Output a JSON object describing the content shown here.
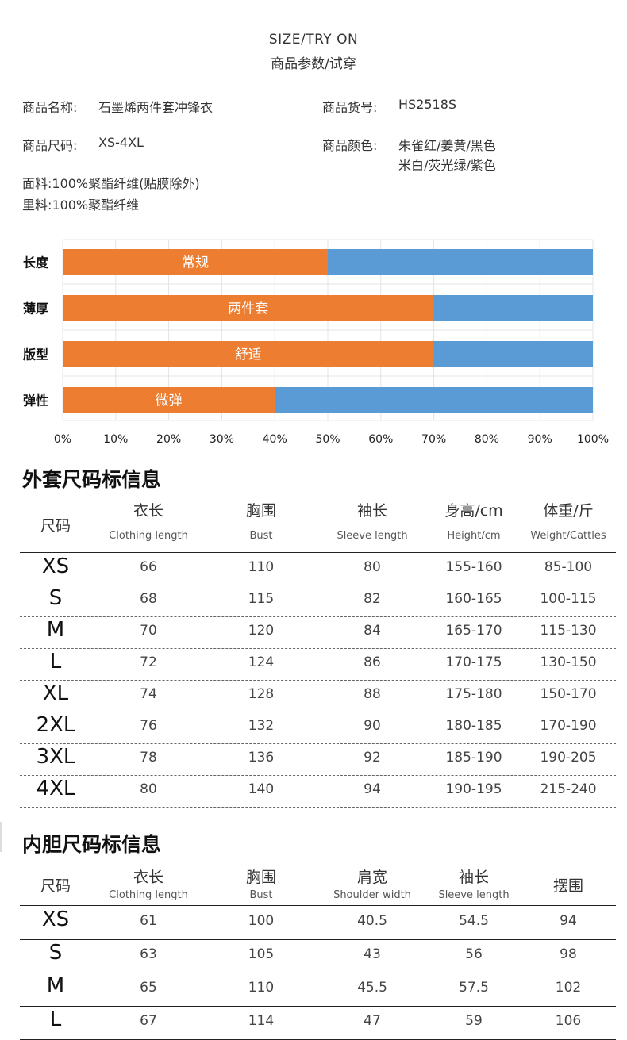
{
  "header": {
    "en": "SIZE/TRY ON",
    "cn": "商品参数/试穿"
  },
  "info": {
    "name_label": "商品名称:",
    "name_value": "石墨烯两件套冲锋衣",
    "code_label": "商品货号:",
    "code_value": "HS2518S",
    "size_label": "商品尺码:",
    "size_value": "XS-4XL",
    "color_label": "商品颜色:",
    "color_line1": "朱雀红/姜黄/黑色",
    "color_line2": "米白/荧光绿/紫色",
    "fabric": "面料:100%聚酯纤维(贴膜除外)",
    "lining": "里料:100%聚酯纤维"
  },
  "chart_data": {
    "type": "bar",
    "orientation": "horizontal",
    "categories": [
      "长度",
      "薄厚",
      "版型",
      "弹性"
    ],
    "labels": [
      "常规",
      "两件套",
      "舒适",
      "微弹"
    ],
    "values": [
      50,
      70,
      70,
      40
    ],
    "xlim": [
      0,
      100
    ],
    "xticks": [
      "0%",
      "10%",
      "20%",
      "30%",
      "40%",
      "50%",
      "60%",
      "70%",
      "80%",
      "90%",
      "100%"
    ],
    "colors": {
      "filled": "#ed7d31",
      "remainder": "#5b9bd5"
    },
    "grid": true
  },
  "outer_table": {
    "title": "外套尺码标信息",
    "size_header": "尺码",
    "columns": [
      {
        "cn": "衣长",
        "en": "Clothing length"
      },
      {
        "cn": "胸围",
        "en": "Bust"
      },
      {
        "cn": "袖长",
        "en": "Sleeve length"
      },
      {
        "cn": "身高/cm",
        "en": "Height/cm"
      },
      {
        "cn": "体重/斤",
        "en": "Weight/Cattles"
      }
    ],
    "rows": [
      {
        "size": "XS",
        "values": [
          "66",
          "110",
          "80",
          "155-160",
          "85-100"
        ]
      },
      {
        "size": "S",
        "values": [
          "68",
          "115",
          "82",
          "160-165",
          "100-115"
        ]
      },
      {
        "size": "M",
        "values": [
          "70",
          "120",
          "84",
          "165-170",
          "115-130"
        ]
      },
      {
        "size": "L",
        "values": [
          "72",
          "124",
          "86",
          "170-175",
          "130-150"
        ]
      },
      {
        "size": "XL",
        "values": [
          "74",
          "128",
          "88",
          "175-180",
          "150-170"
        ]
      },
      {
        "size": "2XL",
        "values": [
          "76",
          "132",
          "90",
          "180-185",
          "170-190"
        ]
      },
      {
        "size": "3XL",
        "values": [
          "78",
          "136",
          "92",
          "185-190",
          "190-205"
        ]
      },
      {
        "size": "4XL",
        "values": [
          "80",
          "140",
          "94",
          "190-195",
          "215-240"
        ]
      }
    ]
  },
  "inner_table": {
    "title": "内胆尺码标信息",
    "size_header": "尺码",
    "columns": [
      {
        "cn": "衣长",
        "en": "Clothing length"
      },
      {
        "cn": "胸围",
        "en": "Bust"
      },
      {
        "cn": "肩宽",
        "en": "Shoulder width"
      },
      {
        "cn": "袖长",
        "en": "Sleeve length"
      },
      {
        "cn": "摆围",
        "en": ""
      }
    ],
    "rows": [
      {
        "size": "XS",
        "values": [
          "61",
          "100",
          "40.5",
          "54.5",
          "94"
        ]
      },
      {
        "size": "S",
        "values": [
          "63",
          "105",
          "43",
          "56",
          "98"
        ]
      },
      {
        "size": "M",
        "values": [
          "65",
          "110",
          "45.5",
          "57.5",
          "102"
        ]
      },
      {
        "size": "L",
        "values": [
          "67",
          "114",
          "47",
          "59",
          "106"
        ]
      }
    ]
  }
}
